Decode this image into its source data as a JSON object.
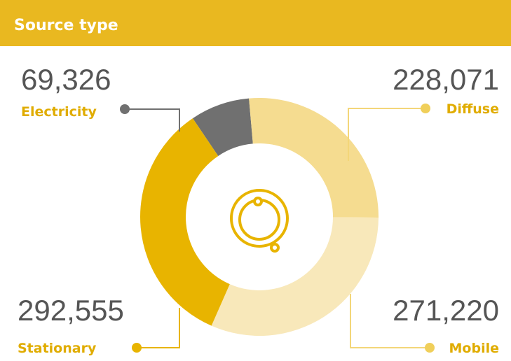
{
  "chart_data": {
    "type": "donut",
    "title": "Source type",
    "categories": [
      "Electricity",
      "Diffuse",
      "Mobile",
      "Stationary"
    ],
    "values": [
      69326,
      228071,
      271220,
      292555
    ],
    "value_labels": [
      "69,326",
      "228,071",
      "271,220",
      "292,555"
    ],
    "colors": [
      "#707070",
      "#f5dc90",
      "#f8e8ba",
      "#e8b400"
    ]
  }
}
